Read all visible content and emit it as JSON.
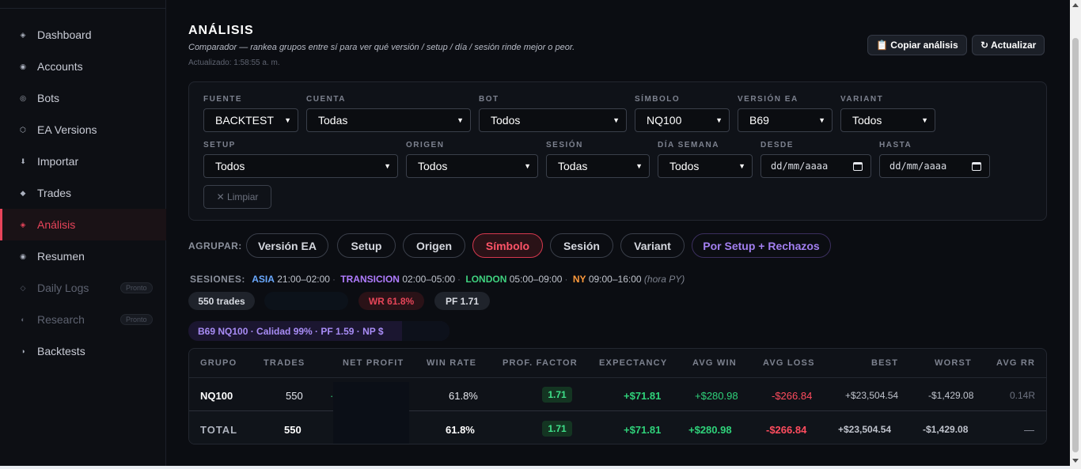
{
  "sidebar": {
    "items": [
      {
        "label": "Dashboard",
        "icon": "diamond-outline-icon"
      },
      {
        "label": "Accounts",
        "icon": "circle-dot-icon"
      },
      {
        "label": "Bots",
        "icon": "ring-icon"
      },
      {
        "label": "EA Versions",
        "icon": "hexagon-icon"
      },
      {
        "label": "Importar",
        "icon": "arrow-down-icon"
      },
      {
        "label": "Trades",
        "icon": "diamond-filled-icon"
      },
      {
        "label": "Análisis",
        "icon": "diamond-target-icon",
        "active": true
      },
      {
        "label": "Resumen",
        "icon": "circle-dot-icon"
      },
      {
        "label": "Daily Logs",
        "icon": "diamond-outline-icon",
        "badge": "Pronto"
      },
      {
        "label": "Research",
        "icon": "half-circle-icon",
        "badge": "Pronto"
      },
      {
        "label": "Backtests",
        "icon": "half-circle-icon"
      }
    ]
  },
  "header": {
    "title": "ANÁLISIS",
    "subtitle": "Comparador — rankea grupos entre sí para ver qué versión / setup / día / sesión rinde mejor o peor.",
    "updated": "Actualizado: 1:58:55 a. m.",
    "copy_label": "📋 Copiar análisis",
    "refresh_label": "↻ Actualizar"
  },
  "filters": {
    "fuente": {
      "label": "FUENTE",
      "value": "BACKTEST"
    },
    "cuenta": {
      "label": "CUENTA",
      "value": "Todas"
    },
    "bot": {
      "label": "BOT",
      "value": "Todos"
    },
    "simbolo": {
      "label": "SÍMBOLO",
      "value": "NQ100"
    },
    "version": {
      "label": "VERSIÓN EA",
      "value": "B69"
    },
    "variant": {
      "label": "VARIANT",
      "value": "Todos"
    },
    "setup": {
      "label": "SETUP",
      "value": "Todos"
    },
    "origen": {
      "label": "ORIGEN",
      "value": "Todos"
    },
    "sesion": {
      "label": "SESIÓN",
      "value": "Todas"
    },
    "dia": {
      "label": "DÍA SEMANA",
      "value": "Todos"
    },
    "desde": {
      "label": "DESDE",
      "value": "dd/mm/aaaa"
    },
    "hasta": {
      "label": "HASTA",
      "value": "dd/mm/aaaa"
    },
    "clear_label": "✕ Limpiar"
  },
  "grouping": {
    "label": "AGRUPAR:",
    "options": [
      "Versión EA",
      "Setup",
      "Origen",
      "Símbolo",
      "Sesión",
      "Variant",
      "Por Setup + Rechazos"
    ],
    "active": "Símbolo"
  },
  "sessions": {
    "label": "SESIONES:",
    "asia": {
      "name": "ASIA",
      "time": "21:00–02:00",
      "color": "#6aa9ff"
    },
    "transicion": {
      "name": "TRANSICION",
      "time": "02:00–05:00",
      "color": "#b07cff"
    },
    "london": {
      "name": "LONDON",
      "time": "05:00–09:00",
      "color": "#3fd27f"
    },
    "ny": {
      "name": "NY",
      "time": "09:00–16:00",
      "color": "#ff9a3c"
    },
    "note": "(hora PY)"
  },
  "summary": {
    "trades": "550 trades",
    "winrate": "WR 61.8%",
    "pf": "PF 1.71",
    "combo": "B69 NQ100 · Calidad 99% · PF 1.59 · NP $"
  },
  "table": {
    "headers": [
      "GRUPO",
      "TRADES",
      "NET PROFIT",
      "WIN RATE",
      "PROF. FACTOR",
      "EXPECTANCY",
      "AVG WIN",
      "AVG LOSS",
      "BEST",
      "WORST",
      "AVG RR"
    ],
    "rows": [
      {
        "grupo": "NQ100",
        "trades": "550",
        "net": "·",
        "winrate": "61.8%",
        "pf": "1.71",
        "expectancy": "+$71.81",
        "avgwin": "+$280.98",
        "avgloss": "-$266.84",
        "best": "+$23,504.54",
        "worst": "-$1,429.08",
        "avgrr": "0.14R"
      }
    ],
    "total": {
      "grupo": "TOTAL",
      "trades": "550",
      "winrate": "61.8%",
      "pf": "1.71",
      "expectancy": "+$71.81",
      "avgwin": "+$280.98",
      "avgloss": "-$266.84",
      "best": "+$23,504.54",
      "worst": "-$1,429.08",
      "avgrr": "—"
    }
  }
}
